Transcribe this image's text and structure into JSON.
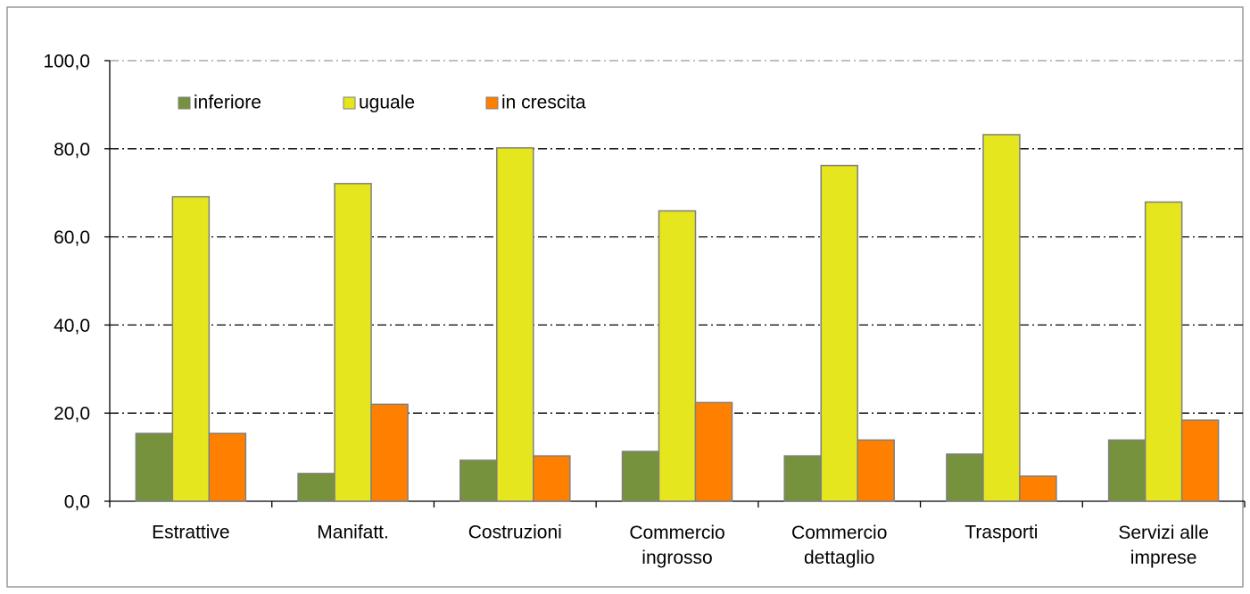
{
  "chart_data": {
    "type": "bar",
    "categories": [
      "Estrattive",
      "Manifatt.",
      "Costruzioni",
      "Commercio\ningrosso",
      "Commercio\ndettaglio",
      "Trasporti",
      "Servizi alle\nimprese"
    ],
    "series": [
      {
        "name": "inferiore",
        "color": "#76923c",
        "values": [
          15.4,
          6.3,
          9.3,
          11.3,
          10.3,
          10.7,
          13.9
        ]
      },
      {
        "name": "uguale",
        "color": "#e6e61e",
        "values": [
          69.1,
          72.1,
          80.2,
          65.9,
          76.2,
          83.2,
          67.9
        ]
      },
      {
        "name": "in crescita",
        "color": "#ff8000",
        "values": [
          15.4,
          22.0,
          10.3,
          22.4,
          13.9,
          5.7,
          18.4
        ]
      }
    ],
    "ylim": [
      0,
      100
    ],
    "yticks": [
      {
        "value": 0,
        "label": "0,0"
      },
      {
        "value": 20,
        "label": "20,0"
      },
      {
        "value": 40,
        "label": "40,0"
      },
      {
        "value": 60,
        "label": "60,0"
      },
      {
        "value": 80,
        "label": "80,0"
      },
      {
        "value": 100,
        "label": "100,0"
      }
    ],
    "grid": true,
    "legend": "top-left"
  }
}
